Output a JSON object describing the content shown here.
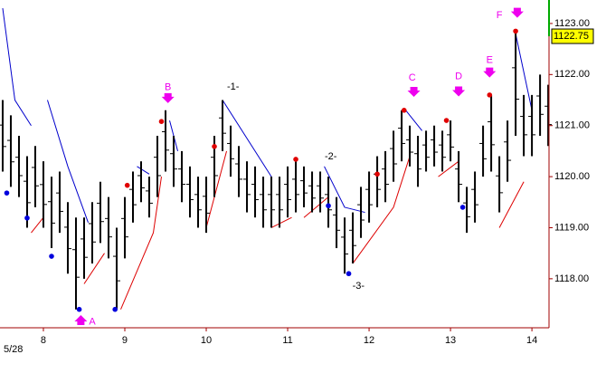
{
  "chart_data": {
    "type": "range-bar",
    "date_label": "5/28",
    "last_price_label": {
      "value": 1122.75,
      "label": "1122.75"
    },
    "xlim": [
      7.467,
      14.21
    ],
    "ylim": [
      1117.04,
      1123.46
    ],
    "xticks": [
      8,
      9,
      10,
      11,
      12,
      13,
      14
    ],
    "yticks": [
      {
        "value": 1118,
        "label": "1118.00"
      },
      {
        "value": 1119,
        "label": "1119.00"
      },
      {
        "value": 1120,
        "label": "1120.00"
      },
      {
        "value": 1121,
        "label": "1121.00"
      },
      {
        "value": 1122,
        "label": "1122.00"
      },
      {
        "value": 1123,
        "label": "1123.00"
      }
    ],
    "color": "#000000",
    "x": [
      7.5,
      7.6,
      7.7,
      7.8,
      7.9,
      8.0,
      8.1,
      8.2,
      8.3,
      8.4,
      8.5,
      8.6,
      8.7,
      8.8,
      8.9,
      9.0,
      9.1,
      9.2,
      9.3,
      9.4,
      9.5,
      9.6,
      9.7,
      9.8,
      9.9,
      10.0,
      10.1,
      10.2,
      10.3,
      10.4,
      10.5,
      10.6,
      10.7,
      10.8,
      10.9,
      11.0,
      11.1,
      11.2,
      11.3,
      11.4,
      11.5,
      11.6,
      11.7,
      11.8,
      11.9,
      12.0,
      12.1,
      12.2,
      12.3,
      12.4,
      12.5,
      12.6,
      12.7,
      12.8,
      12.9,
      13.0,
      13.1,
      13.2,
      13.3,
      13.4,
      13.5,
      13.6,
      13.7,
      13.8,
      13.9,
      14.0,
      14.1,
      14.2
    ],
    "high": [
      1121.5,
      1121.2,
      1120.8,
      1120.4,
      1120.6,
      1120.3,
      1120.0,
      1120.1,
      1119.5,
      1119.2,
      1119.2,
      1119.5,
      1119.9,
      1119.6,
      1119.0,
      1119.6,
      1120.1,
      1120.3,
      1120.0,
      1120.8,
      1121.3,
      1120.8,
      1120.5,
      1120.2,
      1120.0,
      1120.0,
      1120.8,
      1121.5,
      1121.0,
      1120.6,
      1120.3,
      1120.2,
      1120.0,
      1120.0,
      1120.0,
      1120.2,
      1120.3,
      1120.2,
      1120.1,
      1120.1,
      1120.0,
      1119.6,
      1119.2,
      1119.3,
      1119.8,
      1120.1,
      1120.4,
      1120.5,
      1120.9,
      1121.3,
      1121.0,
      1120.8,
      1120.9,
      1121.0,
      1120.9,
      1121.1,
      1120.5,
      1119.8,
      1120.1,
      1121.0,
      1121.6,
      1120.4,
      1121.1,
      1122.85,
      1121.6,
      1121.6,
      1122.0,
      1121.8
    ],
    "low": [
      1120.1,
      1119.8,
      1119.6,
      1119.0,
      1119.4,
      1119.0,
      1118.6,
      1118.9,
      1118.1,
      1117.4,
      1118.0,
      1118.3,
      1118.7,
      1118.4,
      1117.4,
      1118.4,
      1119.1,
      1119.5,
      1119.2,
      1119.6,
      1120.1,
      1119.8,
      1119.5,
      1119.2,
      1119.0,
      1118.9,
      1119.6,
      1120.5,
      1120.0,
      1119.6,
      1119.3,
      1119.2,
      1119.0,
      1119.0,
      1119.0,
      1119.2,
      1119.3,
      1119.4,
      1119.3,
      1119.3,
      1119.0,
      1118.6,
      1118.1,
      1118.3,
      1118.8,
      1119.1,
      1119.4,
      1119.5,
      1119.9,
      1120.3,
      1120.2,
      1119.8,
      1120.1,
      1120.2,
      1120.1,
      1120.3,
      1119.5,
      1118.9,
      1119.1,
      1120.0,
      1120.1,
      1119.3,
      1119.9,
      1120.8,
      1120.4,
      1120.4,
      1120.8,
      1120.6
    ],
    "pivots": [
      {
        "color": "#e00000",
        "x": [
          9.03,
          9.45,
          10.1,
          11.1,
          12.1,
          12.43,
          12.95,
          13.48,
          13.8
        ],
        "y": [
          1119.83,
          1121.08,
          1120.59,
          1120.34,
          1120.05,
          1121.3,
          1121.1,
          1121.6,
          1122.85
        ]
      },
      {
        "color": "#0000dd",
        "x": [
          7.55,
          7.8,
          8.1,
          8.44,
          8.88,
          11.5,
          11.75,
          13.15
        ],
        "y": [
          1119.68,
          1119.19,
          1118.44,
          1117.4,
          1117.4,
          1119.43,
          1118.1,
          1119.4
        ]
      }
    ],
    "trendlines": [
      {
        "color": "#0000cc",
        "segments": [
          {
            "x": [
              7.5,
              7.65,
              7.85
            ],
            "y": [
              1123.3,
              1121.5,
              1121.0
            ]
          },
          {
            "x": [
              8.05,
              8.3,
              8.55
            ],
            "y": [
              1121.5,
              1120.2,
              1119.1
            ]
          },
          {
            "x": [
              9.15,
              9.3
            ],
            "y": [
              1120.2,
              1120.05
            ]
          },
          {
            "x": [
              9.55,
              9.65
            ],
            "y": [
              1121.1,
              1120.5
            ]
          },
          {
            "x": [
              10.2,
              10.8
            ],
            "y": [
              1121.5,
              1120.0
            ]
          },
          {
            "x": [
              11.45,
              11.7,
              11.95
            ],
            "y": [
              1120.2,
              1119.4,
              1119.3
            ]
          },
          {
            "x": [
              12.45,
              12.65
            ],
            "y": [
              1121.3,
              1120.9
            ]
          },
          {
            "x": [
              13.8,
              14.0
            ],
            "y": [
              1122.8,
              1121.3
            ]
          }
        ]
      },
      {
        "color": "#dd0000",
        "segments": [
          {
            "x": [
              7.85,
              8.0
            ],
            "y": [
              1118.9,
              1119.2
            ]
          },
          {
            "x": [
              8.5,
              8.75
            ],
            "y": [
              1117.9,
              1118.5
            ]
          },
          {
            "x": [
              8.95,
              9.35,
              9.45
            ],
            "y": [
              1117.4,
              1118.9,
              1120.0
            ]
          },
          {
            "x": [
              10.0,
              10.25
            ],
            "y": [
              1119.0,
              1120.5
            ]
          },
          {
            "x": [
              10.8,
              11.05
            ],
            "y": [
              1119.0,
              1119.2
            ]
          },
          {
            "x": [
              11.2,
              11.5
            ],
            "y": [
              1119.2,
              1119.6
            ]
          },
          {
            "x": [
              11.8,
              12.3,
              12.5
            ],
            "y": [
              1118.3,
              1119.4,
              1120.4
            ]
          },
          {
            "x": [
              12.85,
              13.1
            ],
            "y": [
              1120.0,
              1120.3
            ]
          },
          {
            "x": [
              13.6,
              13.9
            ],
            "y": [
              1119.0,
              1119.9
            ]
          }
        ]
      }
    ],
    "arrow_color": "#ee00ee",
    "wave_labels": [
      {
        "text": "A",
        "x": 8.6,
        "y": 1117.15,
        "arrow": "up",
        "ax": 8.46,
        "ay": 1117.2
      },
      {
        "text": "B",
        "x": 9.53,
        "y": 1121.75,
        "arrow": "down",
        "ax": 9.53,
        "ay": 1121.53
      },
      {
        "text": "C",
        "x": 12.53,
        "y": 1121.93,
        "arrow": "down",
        "ax": 12.55,
        "ay": 1121.65
      },
      {
        "text": "D",
        "x": 13.1,
        "y": 1121.96,
        "arrow": "down",
        "ax": 13.1,
        "ay": 1121.66
      },
      {
        "text": "E",
        "x": 13.48,
        "y": 1122.28,
        "arrow": "down",
        "ax": 13.48,
        "ay": 1122.03
      },
      {
        "text": "F",
        "x": 13.6,
        "y": 1123.16,
        "arrow": "down",
        "ax": 13.82,
        "ay": 1123.2
      }
    ],
    "count_labels": [
      {
        "text": "-1-",
        "x": 10.33,
        "y": 1121.76
      },
      {
        "text": "-2-",
        "x": 11.53,
        "y": 1120.39
      },
      {
        "text": "-3-",
        "x": 11.87,
        "y": 1117.85
      }
    ]
  }
}
